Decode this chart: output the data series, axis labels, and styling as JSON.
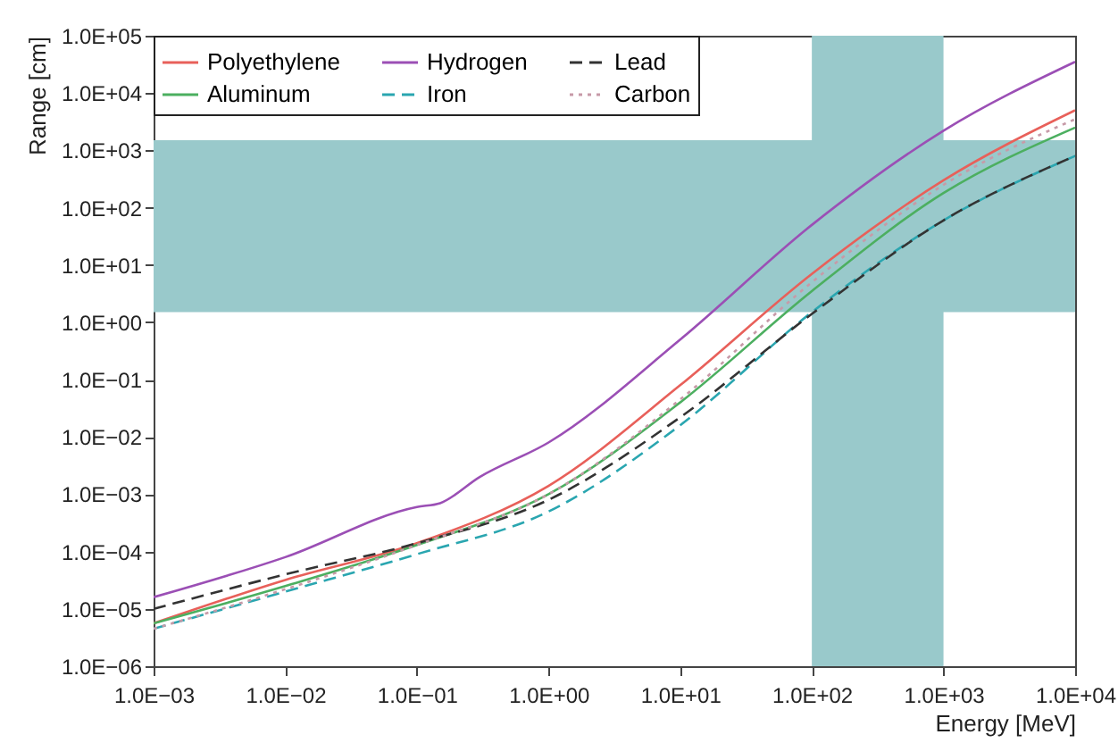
{
  "chart_data": {
    "type": "line",
    "xlabel": "Energy [MeV]",
    "ylabel": "Range [cm]",
    "log": "xy",
    "grid": false,
    "legend": "top left",
    "xlim": [
      0.001,
      10000
    ],
    "ylim": [
      1e-06,
      100000
    ],
    "xticks": [
      {
        "value": 0.001,
        "label": "1.0E−03"
      },
      {
        "value": 0.01,
        "label": "1.0E−02"
      },
      {
        "value": 0.1,
        "label": "1.0E−01"
      },
      {
        "value": 1,
        "label": "1.0E+00"
      },
      {
        "value": 10,
        "label": "1.0E+01"
      },
      {
        "value": 100,
        "label": "1.0E+02"
      },
      {
        "value": 1000,
        "label": "1.0E+03"
      },
      {
        "value": 10000,
        "label": "1.0E+04"
      }
    ],
    "yticks": [
      {
        "value": 1e-06,
        "label": "1.0E−06"
      },
      {
        "value": 1e-05,
        "label": "1.0E−05"
      },
      {
        "value": 0.0001,
        "label": "1.0E−04"
      },
      {
        "value": 0.001,
        "label": "1.0E−03"
      },
      {
        "value": 0.01,
        "label": "1.0E−02"
      },
      {
        "value": 0.1,
        "label": "1.0E−01"
      },
      {
        "value": 1,
        "label": "1.0E+00"
      },
      {
        "value": 10,
        "label": "1.0E+01"
      },
      {
        "value": 100,
        "label": "1.0E+02"
      },
      {
        "value": 1000,
        "label": "1.0E+03"
      },
      {
        "value": 10000,
        "label": "1.0E+04"
      },
      {
        "value": 100000,
        "label": "1.0E+05"
      }
    ],
    "bands": [
      {
        "axis": "y",
        "from": 1.5,
        "to": 1500,
        "color": "#99c9cb"
      },
      {
        "axis": "x",
        "from": 100,
        "to": 1000,
        "color": "#99c9cb"
      }
    ],
    "series": [
      {
        "name": "Polyethylene",
        "color": "#e8605a",
        "line_style": "solid",
        "x": [
          0.001,
          0.01,
          0.1,
          1,
          10,
          100,
          1000,
          10000
        ],
        "values": [
          5.6e-06,
          3.2e-05,
          0.00014,
          0.0014,
          0.08,
          7,
          300,
          5000
        ]
      },
      {
        "name": "Aluminum",
        "color": "#4caf60",
        "line_style": "solid",
        "x": [
          0.001,
          0.01,
          0.1,
          1,
          10,
          100,
          1000,
          10000
        ],
        "values": [
          5.6e-06,
          2.5e-05,
          0.00013,
          0.001,
          0.04,
          3.5,
          180,
          2500
        ]
      },
      {
        "name": "Hydrogen",
        "color": "#9b4fb5",
        "line_style": "solid",
        "x": [
          0.001,
          0.01,
          0.1,
          0.15,
          0.3,
          1,
          10,
          100,
          1000,
          10000
        ],
        "values": [
          1.6e-05,
          8e-05,
          0.0006,
          0.0007,
          0.002,
          0.008,
          0.5,
          50,
          2200,
          35000
        ]
      },
      {
        "name": "Iron",
        "color": "#2aa6b0",
        "line_style": "dashed",
        "x": [
          0.001,
          0.01,
          0.1,
          1,
          10,
          100,
          1000,
          10000
        ],
        "values": [
          4.5e-06,
          2e-05,
          9e-05,
          0.0005,
          0.016,
          1.5,
          60,
          800
        ]
      },
      {
        "name": "Lead",
        "color": "#333333",
        "line_style": "dashed",
        "x": [
          0.001,
          0.01,
          0.1,
          1,
          10,
          100,
          1000,
          10000
        ],
        "values": [
          1e-05,
          4e-05,
          0.00014,
          0.0008,
          0.022,
          1.4,
          60,
          800
        ]
      },
      {
        "name": "Carbon",
        "color": "#c79aa8",
        "line_style": "dotted",
        "x": [
          0.001,
          0.01,
          0.1,
          1,
          10,
          100,
          1000,
          10000
        ],
        "values": [
          4.5e-06,
          2.2e-05,
          0.00013,
          0.001,
          0.045,
          5,
          250,
          3500
        ]
      }
    ]
  }
}
